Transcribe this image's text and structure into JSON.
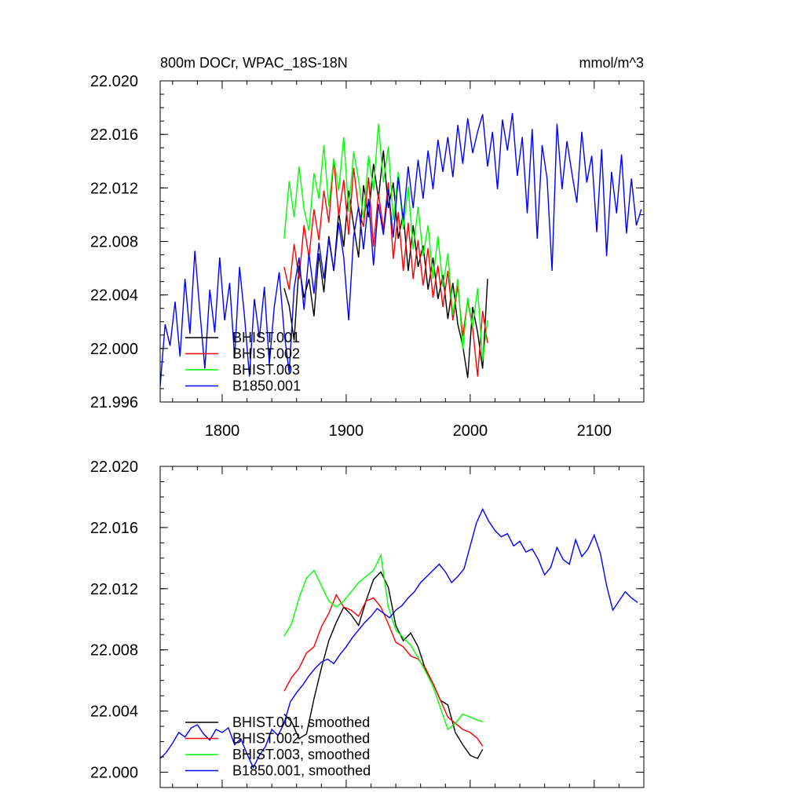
{
  "figure": {
    "title_left": "800m DOCr, WPAC_18S-18N",
    "title_right": "mmol/m^3"
  },
  "chart_data": [
    {
      "type": "line",
      "title": "800m DOCr, WPAC_18S-18N",
      "ylabel": "mmol/m^3",
      "xlim": [
        1750,
        2140
      ],
      "ylim": [
        21.996,
        22.02
      ],
      "x_ticks": [
        1800,
        1900,
        2000,
        2100
      ],
      "x_tick_labels": [
        "1800",
        "1900",
        "2000",
        "2100"
      ],
      "y_ticks": [
        21.996,
        22.0,
        22.004,
        22.008,
        22.012,
        22.016,
        22.02
      ],
      "y_tick_labels": [
        "21.996",
        "22.000",
        "22.004",
        "22.008",
        "22.012",
        "22.016",
        "22.020"
      ],
      "grid": false,
      "legend_position": "bottom-left",
      "series": [
        {
          "name": "BHIST.001",
          "color": "#000000",
          "x": [
            1850,
            1854,
            1858,
            1862,
            1866,
            1870,
            1874,
            1878,
            1882,
            1886,
            1890,
            1894,
            1898,
            1902,
            1906,
            1910,
            1914,
            1918,
            1922,
            1926,
            1930,
            1934,
            1938,
            1942,
            1946,
            1950,
            1954,
            1958,
            1962,
            1966,
            1970,
            1974,
            1978,
            1982,
            1986,
            1990,
            1994,
            1998,
            2002,
            2006,
            2010,
            2014
          ],
          "y": [
            22.0045,
            22.0032,
            22.0006,
            22.0062,
            22.0038,
            22.0052,
            22.0024,
            22.0071,
            22.0042,
            22.0084,
            22.0058,
            22.0102,
            22.0076,
            22.0118,
            22.0092,
            22.0068,
            22.0122,
            22.0098,
            22.0138,
            22.0112,
            22.0148,
            22.0105,
            22.0124,
            22.0082,
            22.0101,
            22.0058,
            22.0092,
            22.0061,
            22.0077,
            22.0044,
            22.0068,
            22.0037,
            22.0055,
            22.0022,
            22.0049,
            22.0018,
            22.0002,
            21.9978,
            22.0031,
            22.0012,
            21.9985,
            22.0052
          ]
        },
        {
          "name": "BHIST.002",
          "color": "#ff0000",
          "x": [
            1850,
            1854,
            1858,
            1862,
            1866,
            1870,
            1874,
            1878,
            1882,
            1886,
            1890,
            1894,
            1898,
            1902,
            1906,
            1910,
            1914,
            1918,
            1922,
            1926,
            1930,
            1934,
            1938,
            1942,
            1946,
            1950,
            1954,
            1958,
            1962,
            1966,
            1970,
            1974,
            1978,
            1982,
            1986,
            1990,
            1994,
            1998,
            2002,
            2006,
            2010,
            2014
          ],
          "y": [
            22.0061,
            22.0044,
            22.0078,
            22.0052,
            22.0092,
            22.0068,
            22.0104,
            22.0081,
            22.0118,
            22.0094,
            22.0141,
            22.0099,
            22.0126,
            22.0085,
            22.0135,
            22.0104,
            22.0091,
            22.0128,
            22.0076,
            22.0116,
            22.0089,
            22.0124,
            22.0067,
            22.0102,
            22.0058,
            22.0094,
            22.0052,
            22.0081,
            22.0047,
            22.0075,
            22.0038,
            22.0062,
            22.0031,
            22.0058,
            22.0021,
            22.0047,
            22.0009,
            22.0036,
            22.0015,
            21.9979,
            22.0028,
            22.0004
          ]
        },
        {
          "name": "BHIST.003",
          "color": "#00ff00",
          "x": [
            1850,
            1854,
            1858,
            1862,
            1866,
            1870,
            1874,
            1878,
            1882,
            1886,
            1890,
            1894,
            1898,
            1902,
            1906,
            1910,
            1914,
            1918,
            1922,
            1926,
            1930,
            1934,
            1938,
            1942,
            1946,
            1950,
            1954,
            1958,
            1962,
            1966,
            1970,
            1974,
            1978,
            1982,
            1986,
            1990,
            1994,
            1998,
            2002,
            2006,
            2010,
            2014
          ],
          "y": [
            22.0082,
            22.0125,
            22.0098,
            22.0136,
            22.0104,
            22.0088,
            22.0131,
            22.0112,
            22.0152,
            22.0106,
            22.0142,
            22.0118,
            22.0158,
            22.0102,
            22.0147,
            22.0126,
            22.0097,
            22.0144,
            22.0118,
            22.0168,
            22.0124,
            22.0151,
            22.0096,
            22.0132,
            22.0089,
            22.0121,
            22.0074,
            22.0106,
            22.0069,
            22.0092,
            22.0052,
            22.0084,
            22.0046,
            22.0071,
            22.0025,
            22.0052,
            21.9999,
            22.0038,
            22.0016,
            22.0045,
            21.9991,
            22.0021
          ]
        },
        {
          "name": "B1850.001",
          "color": "#0000ff",
          "x": [
            1750,
            1754,
            1758,
            1762,
            1766,
            1770,
            1774,
            1778,
            1782,
            1786,
            1790,
            1794,
            1798,
            1802,
            1806,
            1810,
            1814,
            1818,
            1822,
            1826,
            1830,
            1834,
            1838,
            1842,
            1846,
            1850,
            1854,
            1858,
            1862,
            1866,
            1870,
            1874,
            1878,
            1882,
            1886,
            1890,
            1894,
            1898,
            1902,
            1906,
            1910,
            1914,
            1918,
            1922,
            1926,
            1930,
            1934,
            1938,
            1942,
            1946,
            1950,
            1954,
            1958,
            1962,
            1966,
            1970,
            1974,
            1978,
            1982,
            1986,
            1990,
            1994,
            1998,
            2002,
            2006,
            2010,
            2014,
            2018,
            2022,
            2026,
            2030,
            2034,
            2038,
            2042,
            2046,
            2050,
            2054,
            2058,
            2062,
            2066,
            2070,
            2074,
            2078,
            2082,
            2086,
            2090,
            2094,
            2098,
            2102,
            2106,
            2110,
            2114,
            2118,
            2122,
            2126,
            2130,
            2134,
            2138
          ],
          "y": [
            21.9972,
            22.0018,
            22.0002,
            22.0035,
            21.9994,
            22.0052,
            22.0011,
            22.0073,
            22.0028,
            21.9985,
            22.0044,
            22.0012,
            22.0068,
            22.0021,
            22.0049,
            21.9993,
            22.0061,
            22.0024,
            21.9979,
            22.0037,
            22.0008,
            22.0046,
            21.9988,
            22.0031,
            22.0057,
            22.0012,
            21.9982,
            22.0045,
            22.0068,
            22.0029,
            22.0071,
            22.0041,
            22.0079,
            22.0052,
            22.0082,
            22.0058,
            22.0094,
            22.0068,
            22.0021,
            22.0084,
            22.0106,
            22.0074,
            22.0112,
            22.0062,
            22.0108,
            22.0085,
            22.0119,
            22.0083,
            22.0128,
            22.0096,
            22.0136,
            22.0105,
            22.0141,
            22.0112,
            22.0148,
            22.0119,
            22.0156,
            22.0132,
            22.0158,
            22.0128,
            22.0167,
            22.0138,
            22.0172,
            22.0146,
            22.0162,
            22.0175,
            22.0136,
            22.0162,
            22.0119,
            22.0171,
            22.0148,
            22.0176,
            22.0129,
            22.0158,
            22.0101,
            22.0164,
            22.0082,
            22.0152,
            22.0127,
            22.0058,
            22.0168,
            22.0119,
            22.0155,
            22.0131,
            22.0109,
            22.0162,
            22.0124,
            22.0144,
            22.0087,
            22.0149,
            22.0069,
            22.0132,
            22.0101,
            22.0145,
            22.0086,
            22.0127,
            22.0092,
            22.0104
          ]
        }
      ]
    },
    {
      "type": "line",
      "xlim": [
        1750,
        2140
      ],
      "ylim": [
        21.999,
        22.02
      ],
      "x_ticks": [
        1800,
        1900,
        2000,
        2100
      ],
      "y_ticks": [
        22.0,
        22.004,
        22.008,
        22.012,
        22.016,
        22.02
      ],
      "y_tick_labels": [
        "22.000",
        "22.004",
        "22.008",
        "22.012",
        "22.016",
        "22.020"
      ],
      "grid": false,
      "legend_position": "bottom-left",
      "series": [
        {
          "name": "BHIST.001, smoothed",
          "color": "#000000",
          "x": [
            1850,
            1856,
            1862,
            1868,
            1874,
            1880,
            1886,
            1892,
            1898,
            1904,
            1910,
            1916,
            1922,
            1928,
            1934,
            1940,
            1946,
            1952,
            1958,
            1964,
            1970,
            1976,
            1982,
            1988,
            1994,
            2000,
            2006,
            2010
          ],
          "y": [
            22.0038,
            22.0033,
            22.0022,
            22.0025,
            22.0048,
            22.0068,
            22.0086,
            22.0098,
            22.0108,
            22.0103,
            22.0096,
            22.0112,
            22.0126,
            22.0131,
            22.0121,
            22.0096,
            22.0086,
            22.0091,
            22.0082,
            22.0067,
            22.0058,
            22.0047,
            22.0044,
            22.0026,
            22.0018,
            22.0011,
            22.0009,
            22.0015
          ]
        },
        {
          "name": "BHIST.002, smoothed",
          "color": "#ff0000",
          "x": [
            1850,
            1856,
            1862,
            1868,
            1874,
            1880,
            1886,
            1892,
            1898,
            1904,
            1910,
            1916,
            1922,
            1928,
            1934,
            1940,
            1946,
            1952,
            1958,
            1964,
            1970,
            1976,
            1982,
            1988,
            1994,
            2000,
            2006,
            2010
          ],
          "y": [
            22.0053,
            22.0062,
            22.0068,
            22.0078,
            22.0082,
            22.0095,
            22.0104,
            22.0116,
            22.0108,
            22.0106,
            22.0102,
            22.0112,
            22.0114,
            22.0108,
            22.0097,
            22.0085,
            22.0082,
            22.0076,
            22.0074,
            22.0068,
            22.0058,
            22.0047,
            22.0036,
            22.0032,
            22.0028,
            22.0026,
            22.0022,
            22.0017
          ]
        },
        {
          "name": "BHIST.003, smoothed",
          "color": "#00ff00",
          "x": [
            1850,
            1856,
            1862,
            1868,
            1874,
            1880,
            1886,
            1892,
            1898,
            1904,
            1910,
            1916,
            1922,
            1928,
            1934,
            1940,
            1946,
            1952,
            1958,
            1964,
            1970,
            1976,
            1982,
            1988,
            1994,
            2000,
            2006,
            2010
          ],
          "y": [
            22.0089,
            22.0097,
            22.0114,
            22.0127,
            22.0132,
            22.0122,
            22.0112,
            22.0108,
            22.0112,
            22.0118,
            22.0124,
            22.0128,
            22.0132,
            22.0142,
            22.0108,
            22.0093,
            22.0088,
            22.0083,
            22.0075,
            22.0066,
            22.0056,
            22.0042,
            22.0028,
            22.0032,
            22.0038,
            22.0036,
            22.0034,
            22.0033
          ]
        },
        {
          "name": "B1850.001, smoothed",
          "color": "#0000ff",
          "x": [
            1750,
            1755,
            1760,
            1765,
            1770,
            1775,
            1780,
            1785,
            1790,
            1795,
            1800,
            1805,
            1810,
            1815,
            1820,
            1825,
            1830,
            1835,
            1840,
            1845,
            1850,
            1855,
            1860,
            1865,
            1870,
            1875,
            1880,
            1885,
            1890,
            1895,
            1900,
            1905,
            1910,
            1915,
            1920,
            1925,
            1930,
            1935,
            1940,
            1945,
            1950,
            1955,
            1960,
            1965,
            1970,
            1975,
            1980,
            1985,
            1990,
            1995,
            2000,
            2005,
            2010,
            2015,
            2020,
            2025,
            2030,
            2035,
            2040,
            2045,
            2050,
            2055,
            2060,
            2065,
            2070,
            2075,
            2080,
            2085,
            2090,
            2095,
            2100,
            2105,
            2110,
            2115,
            2120,
            2125,
            2130,
            2135
          ],
          "y": [
            22.0009,
            22.0013,
            22.0019,
            22.0026,
            22.0023,
            22.0029,
            22.0031,
            22.0025,
            22.0021,
            22.0028,
            22.0026,
            22.0029,
            22.0018,
            22.0022,
            22.0012,
            22.0003,
            22.0011,
            22.0017,
            22.0028,
            22.0024,
            22.0032,
            22.0046,
            22.0052,
            22.0057,
            22.0063,
            22.0068,
            22.0072,
            22.0074,
            22.0071,
            22.0077,
            22.0082,
            22.0088,
            22.0093,
            22.0098,
            22.0102,
            22.0107,
            22.0104,
            22.0101,
            22.0106,
            22.0109,
            22.0114,
            22.0118,
            22.0124,
            22.0128,
            22.0132,
            22.0136,
            22.0131,
            22.0124,
            22.0128,
            22.0133,
            22.0148,
            22.0163,
            22.0172,
            22.0164,
            22.0158,
            22.0154,
            22.0156,
            22.0148,
            22.0151,
            22.0144,
            22.0146,
            22.0139,
            22.0129,
            22.0134,
            22.0147,
            22.0139,
            22.0136,
            22.0152,
            22.0141,
            22.0146,
            22.0155,
            22.0143,
            22.0122,
            22.0106,
            22.0112,
            22.0118,
            22.0114,
            22.0111
          ]
        }
      ]
    }
  ]
}
